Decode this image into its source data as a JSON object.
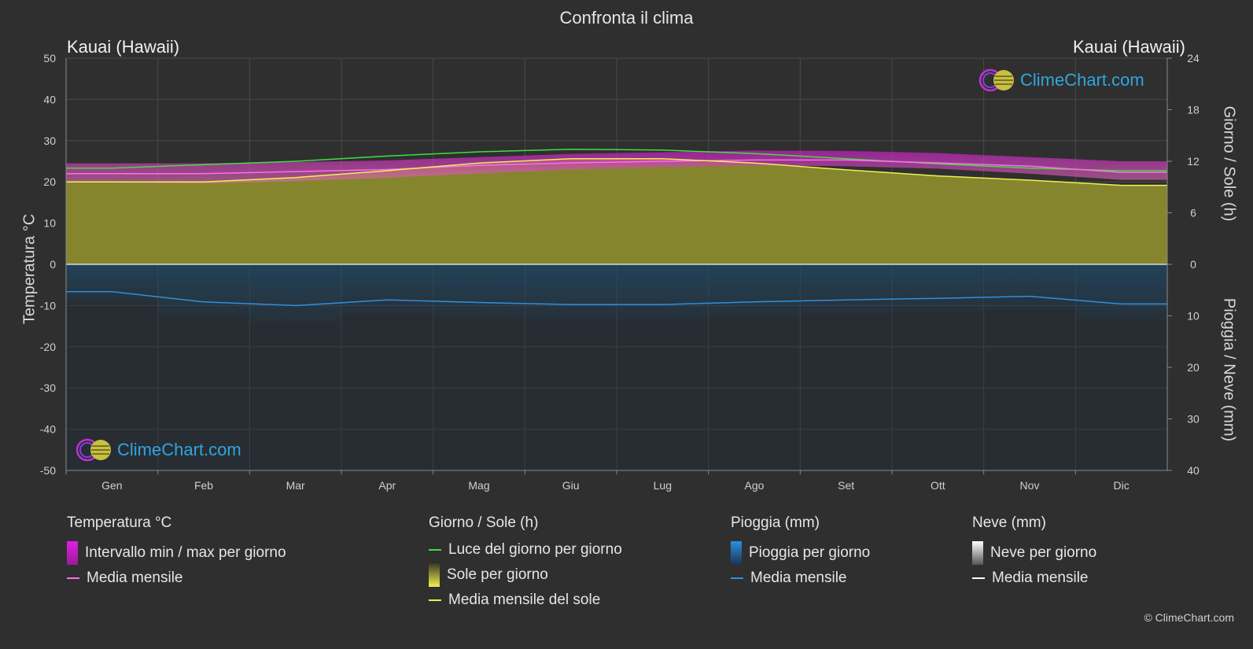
{
  "title": "Confronta il clima",
  "location_left": "Kauai (Hawaii)",
  "location_right": "Kauai (Hawaii)",
  "axes": {
    "left_label": "Temperatura °C",
    "right_top_label": "Giorno / Sole (h)",
    "right_bottom_label": "Pioggia / Neve (mm)",
    "left_ticks": [
      50,
      40,
      30,
      20,
      10,
      0,
      -10,
      -20,
      -30,
      -40,
      -50
    ],
    "right_top_ticks": [
      24,
      18,
      12,
      6,
      0
    ],
    "right_bottom_ticks": [
      0,
      10,
      20,
      30,
      40
    ]
  },
  "logo_text": "ClimeChart.com",
  "copyright": "© ClimeChart.com",
  "legend": {
    "temp": {
      "heading": "Temperatura °C",
      "range_label": "Intervallo min / max per giorno",
      "mean_label": "Media mensile"
    },
    "sun": {
      "heading": "Giorno / Sole (h)",
      "daylight_label": "Luce del giorno per giorno",
      "sun_label": "Sole per giorno",
      "sun_mean_label": "Media mensile del sole"
    },
    "rain": {
      "heading": "Pioggia (mm)",
      "rain_label": "Pioggia per giorno",
      "mean_label": "Media mensile"
    },
    "snow": {
      "heading": "Neve (mm)",
      "snow_label": "Neve per giorno",
      "mean_label": "Media mensile"
    }
  },
  "colors": {
    "background": "#2f2f2f",
    "temp_range": "#d21ed2",
    "temp_mean": "#ff6cf0",
    "daylight": "#3ee03e",
    "sunshine": "#8a8a2e",
    "sun_mean": "#f0f050",
    "rain": "#1e6fa8",
    "rain_mean": "#2e8fe0",
    "snow_mean": "#ffffff",
    "logo_accent": "#2fa6e0"
  },
  "chart_data": {
    "type": "area",
    "categories": [
      "Gen",
      "Feb",
      "Mar",
      "Apr",
      "Mag",
      "Giu",
      "Lug",
      "Ago",
      "Set",
      "Ott",
      "Nov",
      "Dic"
    ],
    "temperature_c": {
      "ylim": [
        -50,
        50
      ],
      "daily_max_mean": [
        24.5,
        24.5,
        24.8,
        25.2,
        26.0,
        26.8,
        27.2,
        27.6,
        27.5,
        27.0,
        26.0,
        25.0
      ],
      "daily_min_mean": [
        19.8,
        19.6,
        20.2,
        21.0,
        22.0,
        23.0,
        23.6,
        24.0,
        23.8,
        23.2,
        22.0,
        20.5
      ],
      "monthly_mean": [
        22.0,
        22.0,
        22.5,
        23.0,
        24.0,
        24.6,
        25.0,
        25.3,
        25.3,
        24.6,
        23.8,
        22.3
      ]
    },
    "daylight_hours": {
      "ylim": [
        0,
        24
      ],
      "values": [
        11.2,
        11.6,
        12.0,
        12.6,
        13.1,
        13.4,
        13.3,
        12.9,
        12.3,
        11.7,
        11.2,
        10.9
      ]
    },
    "sunshine_hours": {
      "ylim": [
        0,
        24
      ],
      "values": [
        9.6,
        9.6,
        10.1,
        10.9,
        11.8,
        12.3,
        12.3,
        11.8,
        11.0,
        10.3,
        9.8,
        9.2
      ]
    },
    "rain_mm": {
      "ylim": [
        0,
        40
      ],
      "monthly_mean": [
        5.3,
        7.3,
        8.0,
        6.9,
        7.4,
        7.8,
        7.8,
        7.3,
        6.9,
        6.6,
        6.2,
        7.7
      ]
    },
    "snow_mm": {
      "monthly_mean": [
        0,
        0,
        0,
        0,
        0,
        0,
        0,
        0,
        0,
        0,
        0,
        0
      ]
    }
  }
}
